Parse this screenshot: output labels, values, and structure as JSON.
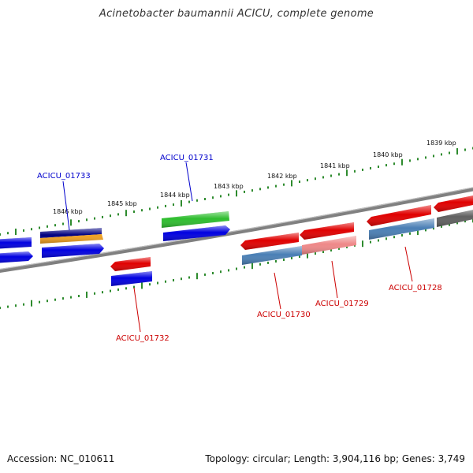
{
  "title": "Acinetobacter baumannii ACICU, complete genome",
  "footer": {
    "accession": "Accession: NC_010611",
    "summary": "Topology: circular; Length: 3,904,116 bp; Genes: 3,749"
  },
  "colors": {
    "tick": "#2e8b2e",
    "backbone": "#808080",
    "forward_label": "#0000cc",
    "reverse_label": "#cc0000",
    "red": "#e00000",
    "blue": "#0000e0",
    "green": "#2ebd2e",
    "steelblue": "#4a7fb5",
    "pink": "#ee8888",
    "orange": "#f0a020",
    "navy": "#000080",
    "gray": "#606060"
  },
  "scale": {
    "labels": [
      "1846 kbp",
      "1845 kbp",
      "1844 kbp",
      "1843 kbp",
      "1842 kbp",
      "1841 kbp",
      "1840 kbp",
      "1839 kbp"
    ]
  },
  "genes": [
    {
      "label": "ACICU_01733",
      "strand": "forward"
    },
    {
      "label": "ACICU_01731",
      "strand": "forward"
    },
    {
      "label": "ACICU_01732",
      "strand": "reverse"
    },
    {
      "label": "ACICU_01730",
      "strand": "reverse"
    },
    {
      "label": "ACICU_01729",
      "strand": "reverse"
    },
    {
      "label": "ACICU_01728",
      "strand": "reverse"
    }
  ]
}
